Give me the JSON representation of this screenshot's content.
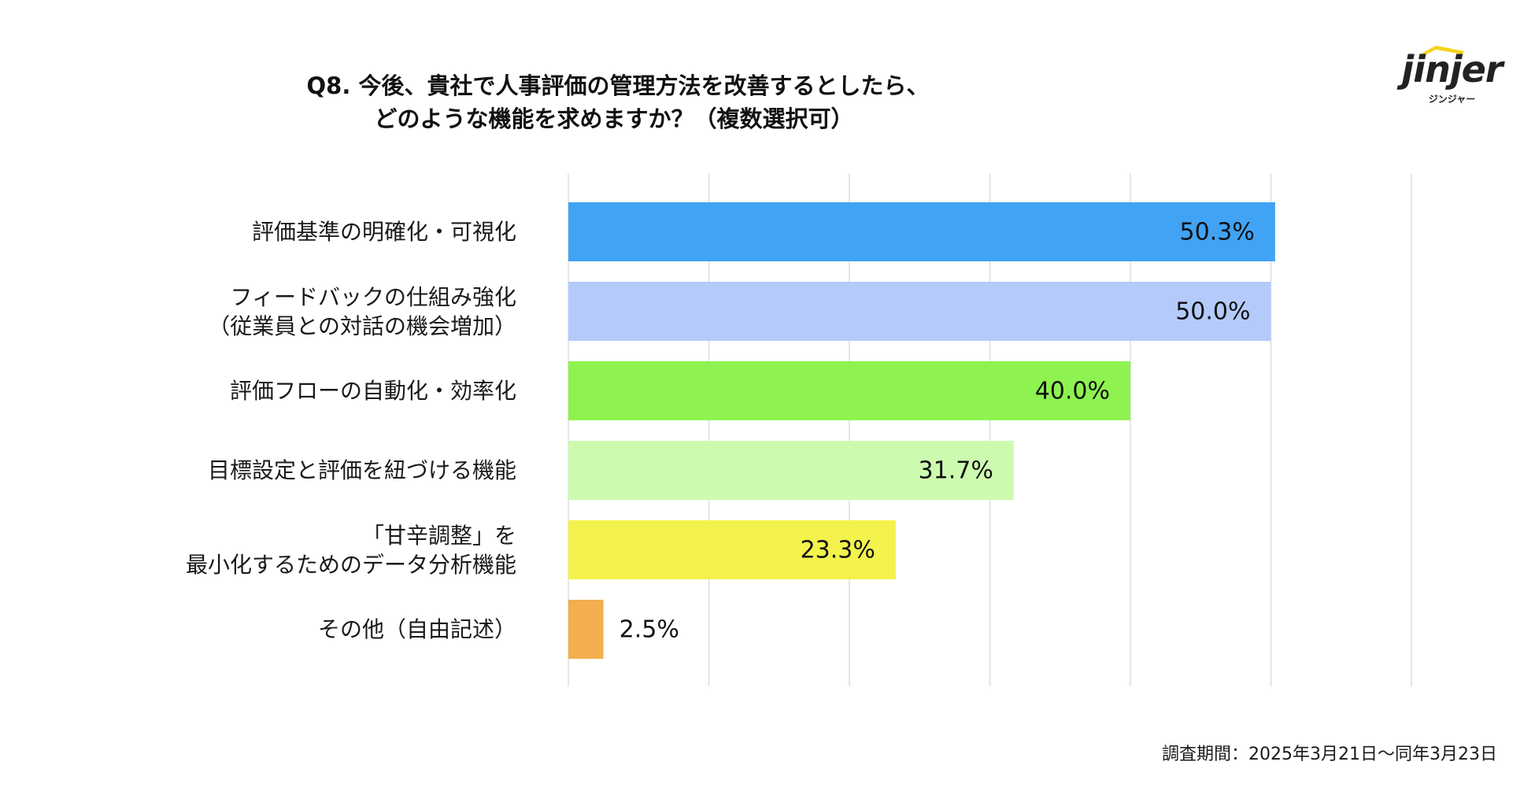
{
  "title_line1": "Q8. 今後、貴社で人事評価の管理方法を改善するとしたら、",
  "title_line2": "どのような機能を求めますか？（複数選択可）",
  "logo": {
    "word": "jinjer",
    "sub": "ジンジャー",
    "accent_color": "#F5D21E"
  },
  "footnote": "調査期間：2025年3月21日〜同年3月23日",
  "chart_data": {
    "type": "bar",
    "orientation": "horizontal",
    "title": "Q8. 今後、貴社で人事評価の管理方法を改善するとしたら、どのような機能を求めますか？（複数選択可）",
    "categories": [
      "評価基準の明確化・可視化",
      "フィードバックの仕組み強化\n（従業員との対話の機会増加）",
      "評価フローの自動化・効率化",
      "目標設定と評価を紐づける機能",
      "「甘辛調整」を\n最小化するためのデータ分析機能",
      "その他（自由記述）"
    ],
    "values": [
      50.3,
      50.0,
      40.0,
      31.7,
      23.3,
      2.5
    ],
    "data_labels": [
      "50.3%",
      "50.0%",
      "40.0%",
      "31.7%",
      "23.3%",
      "2.5%"
    ],
    "colors": [
      "#41A3F4",
      "#B3CAFB",
      "#8EF250",
      "#CCFBB0",
      "#F4F24D",
      "#F3AE4F"
    ],
    "xlim": [
      0,
      60
    ],
    "grid": true,
    "legend": "none"
  }
}
